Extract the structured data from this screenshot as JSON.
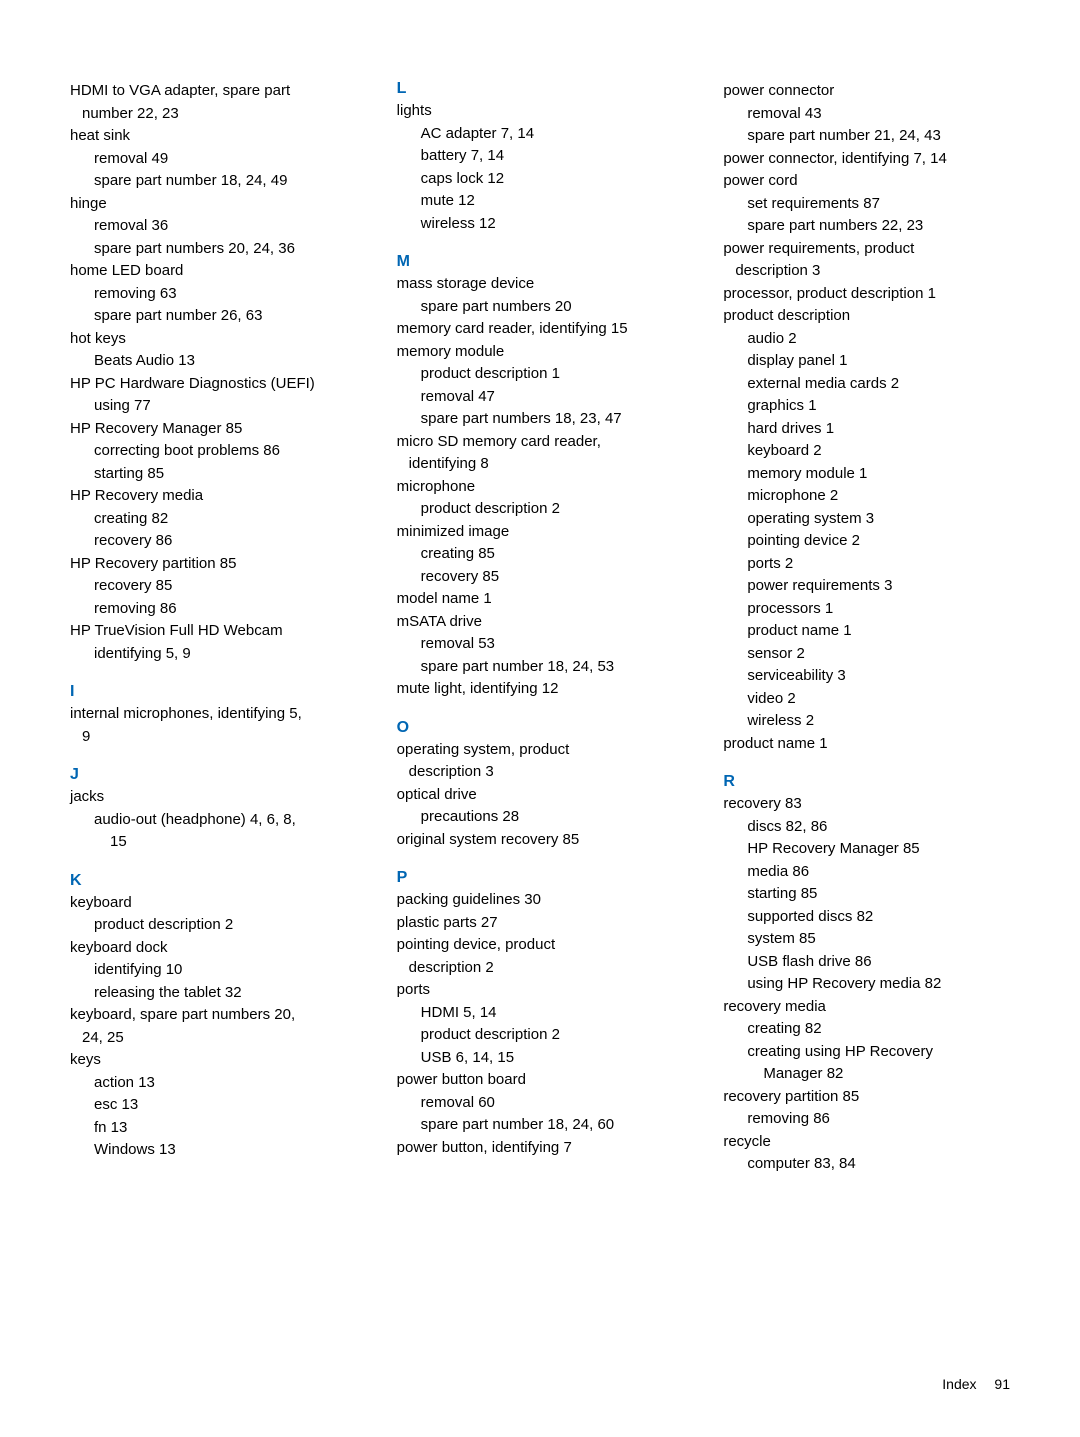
{
  "col1": {
    "items": [
      {
        "type": "entry",
        "text": "HDMI to VGA adapter, spare part"
      },
      {
        "type": "hang",
        "text": "number    22, 23"
      },
      {
        "type": "entry",
        "text": "heat sink"
      },
      {
        "type": "sub",
        "text": "removal    49"
      },
      {
        "type": "sub",
        "text": "spare part number    18, 24, 49"
      },
      {
        "type": "entry",
        "text": "hinge"
      },
      {
        "type": "sub",
        "text": "removal    36"
      },
      {
        "type": "sub",
        "text": "spare part numbers    20, 24, 36"
      },
      {
        "type": "entry",
        "text": "home LED board"
      },
      {
        "type": "sub",
        "text": "removing    63"
      },
      {
        "type": "sub",
        "text": "spare part number    26, 63"
      },
      {
        "type": "entry",
        "text": "hot keys"
      },
      {
        "type": "sub",
        "text": "Beats Audio    13"
      },
      {
        "type": "entry",
        "text": "HP PC Hardware Diagnostics (UEFI)"
      },
      {
        "type": "sub",
        "text": "using    77"
      },
      {
        "type": "entry",
        "text": "HP Recovery Manager    85"
      },
      {
        "type": "sub",
        "text": "correcting boot problems    86"
      },
      {
        "type": "sub",
        "text": "starting    85"
      },
      {
        "type": "entry",
        "text": "HP Recovery media"
      },
      {
        "type": "sub",
        "text": "creating    82"
      },
      {
        "type": "sub",
        "text": "recovery    86"
      },
      {
        "type": "entry",
        "text": "HP Recovery partition    85"
      },
      {
        "type": "sub",
        "text": "recovery    85"
      },
      {
        "type": "sub",
        "text": "removing    86"
      },
      {
        "type": "entry",
        "text": "HP TrueVision Full HD Webcam"
      },
      {
        "type": "sub",
        "text": "identifying    5, 9"
      },
      {
        "type": "letter",
        "text": "I"
      },
      {
        "type": "entry",
        "text": "internal microphones, identifying    5,"
      },
      {
        "type": "hang",
        "text": "9"
      },
      {
        "type": "letter",
        "text": "J"
      },
      {
        "type": "entry",
        "text": "jacks"
      },
      {
        "type": "sub",
        "text": "audio-out (headphone)    4, 6, 8,"
      },
      {
        "type": "sub2",
        "text": "15"
      },
      {
        "type": "letter",
        "text": "K"
      },
      {
        "type": "entry",
        "text": "keyboard"
      },
      {
        "type": "sub",
        "text": "product description    2"
      },
      {
        "type": "entry",
        "text": "keyboard dock"
      },
      {
        "type": "sub",
        "text": "identifying    10"
      },
      {
        "type": "sub",
        "text": "releasing the tablet    32"
      },
      {
        "type": "entry",
        "text": "keyboard, spare part numbers    20,"
      },
      {
        "type": "hang",
        "text": "24, 25"
      },
      {
        "type": "entry",
        "text": "keys"
      },
      {
        "type": "sub",
        "text": "action    13"
      },
      {
        "type": "sub",
        "text": "esc    13"
      },
      {
        "type": "sub",
        "text": "fn    13"
      },
      {
        "type": "sub",
        "text": "Windows    13"
      }
    ]
  },
  "col2": {
    "items": [
      {
        "type": "letter-first",
        "text": "L"
      },
      {
        "type": "entry",
        "text": "lights"
      },
      {
        "type": "sub",
        "text": "AC adapter    7, 14"
      },
      {
        "type": "sub",
        "text": "battery    7, 14"
      },
      {
        "type": "sub",
        "text": "caps lock    12"
      },
      {
        "type": "sub",
        "text": "mute    12"
      },
      {
        "type": "sub",
        "text": "wireless    12"
      },
      {
        "type": "letter",
        "text": "M"
      },
      {
        "type": "entry",
        "text": "mass storage device"
      },
      {
        "type": "sub",
        "text": "spare part numbers    20"
      },
      {
        "type": "entry",
        "text": "memory card reader, identifying    15"
      },
      {
        "type": "entry",
        "text": "memory module"
      },
      {
        "type": "sub",
        "text": "product description    1"
      },
      {
        "type": "sub",
        "text": "removal    47"
      },
      {
        "type": "sub",
        "text": "spare part numbers    18, 23, 47"
      },
      {
        "type": "entry",
        "text": "micro SD memory card reader,"
      },
      {
        "type": "hang",
        "text": "identifying    8"
      },
      {
        "type": "entry",
        "text": "microphone"
      },
      {
        "type": "sub",
        "text": "product description    2"
      },
      {
        "type": "entry",
        "text": "minimized image"
      },
      {
        "type": "sub",
        "text": "creating    85"
      },
      {
        "type": "sub",
        "text": "recovery    85"
      },
      {
        "type": "entry",
        "text": "model name    1"
      },
      {
        "type": "entry",
        "text": "mSATA drive"
      },
      {
        "type": "sub",
        "text": "removal    53"
      },
      {
        "type": "sub",
        "text": "spare part number    18, 24, 53"
      },
      {
        "type": "entry",
        "text": "mute light, identifying    12"
      },
      {
        "type": "letter",
        "text": "O"
      },
      {
        "type": "entry",
        "text": "operating system, product"
      },
      {
        "type": "hang",
        "text": "description    3"
      },
      {
        "type": "entry",
        "text": "optical drive"
      },
      {
        "type": "sub",
        "text": "precautions    28"
      },
      {
        "type": "entry",
        "text": "original system recovery    85"
      },
      {
        "type": "letter",
        "text": "P"
      },
      {
        "type": "entry",
        "text": "packing guidelines    30"
      },
      {
        "type": "entry",
        "text": "plastic parts    27"
      },
      {
        "type": "entry",
        "text": "pointing device, product"
      },
      {
        "type": "hang",
        "text": "description    2"
      },
      {
        "type": "entry",
        "text": "ports"
      },
      {
        "type": "sub",
        "text": "HDMI    5, 14"
      },
      {
        "type": "sub",
        "text": "product description    2"
      },
      {
        "type": "sub",
        "text": "USB    6, 14, 15"
      },
      {
        "type": "entry",
        "text": "power button board"
      },
      {
        "type": "sub",
        "text": "removal    60"
      },
      {
        "type": "sub",
        "text": "spare part number    18, 24, 60"
      },
      {
        "type": "entry",
        "text": "power button, identifying    7"
      }
    ]
  },
  "col3": {
    "items": [
      {
        "type": "entry",
        "text": "power connector"
      },
      {
        "type": "sub",
        "text": "removal    43"
      },
      {
        "type": "sub",
        "text": "spare part number    21, 24, 43"
      },
      {
        "type": "entry",
        "text": "power connector, identifying    7, 14"
      },
      {
        "type": "entry",
        "text": "power cord"
      },
      {
        "type": "sub",
        "text": "set requirements    87"
      },
      {
        "type": "sub",
        "text": "spare part numbers    22, 23"
      },
      {
        "type": "entry",
        "text": "power requirements, product"
      },
      {
        "type": "hang",
        "text": "description    3"
      },
      {
        "type": "entry",
        "text": "processor, product description    1"
      },
      {
        "type": "entry",
        "text": "product description"
      },
      {
        "type": "sub",
        "text": "audio    2"
      },
      {
        "type": "sub",
        "text": "display panel    1"
      },
      {
        "type": "sub",
        "text": "external media cards    2"
      },
      {
        "type": "sub",
        "text": "graphics    1"
      },
      {
        "type": "sub",
        "text": "hard drives    1"
      },
      {
        "type": "sub",
        "text": "keyboard    2"
      },
      {
        "type": "sub",
        "text": "memory module    1"
      },
      {
        "type": "sub",
        "text": "microphone    2"
      },
      {
        "type": "sub",
        "text": "operating system    3"
      },
      {
        "type": "sub",
        "text": "pointing device    2"
      },
      {
        "type": "sub",
        "text": "ports    2"
      },
      {
        "type": "sub",
        "text": "power requirements    3"
      },
      {
        "type": "sub",
        "text": "processors    1"
      },
      {
        "type": "sub",
        "text": "product name    1"
      },
      {
        "type": "sub",
        "text": "sensor    2"
      },
      {
        "type": "sub",
        "text": "serviceability    3"
      },
      {
        "type": "sub",
        "text": "video    2"
      },
      {
        "type": "sub",
        "text": "wireless    2"
      },
      {
        "type": "entry",
        "text": "product name    1"
      },
      {
        "type": "letter",
        "text": "R"
      },
      {
        "type": "entry",
        "text": "recovery    83"
      },
      {
        "type": "sub",
        "text": "discs    82, 86"
      },
      {
        "type": "sub",
        "text": "HP Recovery Manager    85"
      },
      {
        "type": "sub",
        "text": "media    86"
      },
      {
        "type": "sub",
        "text": "starting    85"
      },
      {
        "type": "sub",
        "text": "supported discs    82"
      },
      {
        "type": "sub",
        "text": "system    85"
      },
      {
        "type": "sub",
        "text": "USB flash drive    86"
      },
      {
        "type": "sub",
        "text": "using HP Recovery media    82"
      },
      {
        "type": "entry",
        "text": "recovery media"
      },
      {
        "type": "sub",
        "text": "creating    82"
      },
      {
        "type": "sub",
        "text": "creating using HP Recovery"
      },
      {
        "type": "sub2",
        "text": "Manager    82"
      },
      {
        "type": "entry",
        "text": "recovery partition    85"
      },
      {
        "type": "sub",
        "text": "removing    86"
      },
      {
        "type": "entry",
        "text": "recycle"
      },
      {
        "type": "sub",
        "text": "computer    83, 84"
      }
    ]
  },
  "footer": {
    "label": "Index",
    "page": "91"
  }
}
